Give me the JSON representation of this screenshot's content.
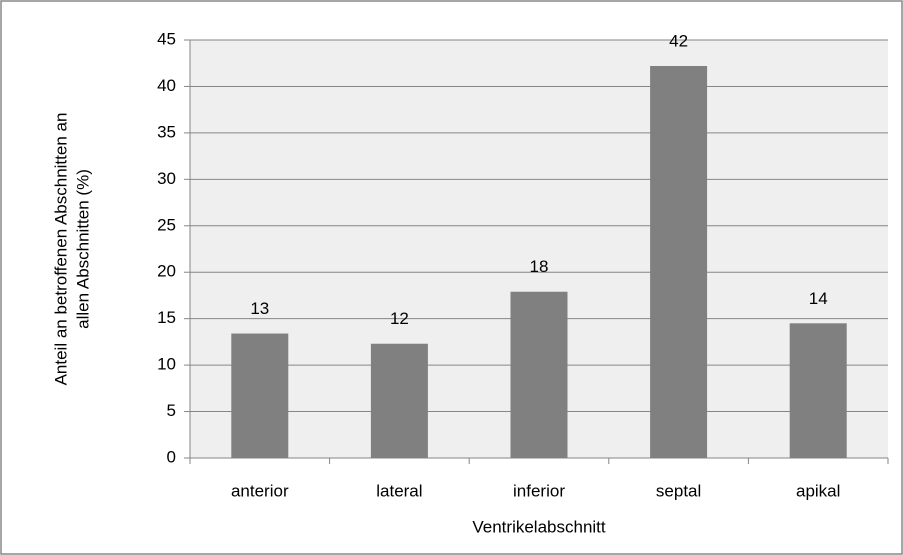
{
  "chart_data": {
    "type": "bar",
    "xlabel": "Ventrikelabschnitt",
    "ylabel": [
      "Anteil  an betroffenen Abschnitten an",
      "allen Abschnitten (%)"
    ],
    "categories": [
      "anterior",
      "lateral",
      "inferior",
      "septal",
      "apikal"
    ],
    "values": [
      13.4,
      12.3,
      17.9,
      42.2,
      14.5
    ],
    "value_labels": [
      "13",
      "12",
      "18",
      "42",
      "14"
    ],
    "color": "#808080",
    "ylim": [
      0,
      45
    ],
    "yticks": [
      0,
      5,
      10,
      15,
      20,
      25,
      30,
      35,
      40,
      45
    ],
    "grid": true
  }
}
